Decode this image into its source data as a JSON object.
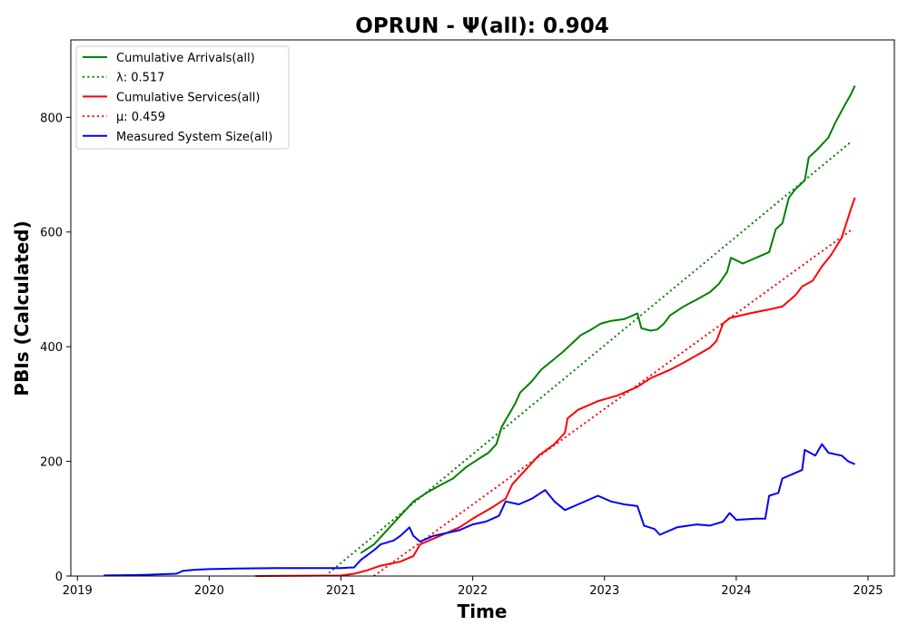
{
  "chart_data": {
    "type": "line",
    "title": "OPRUN -  Ψ(all): 0.904",
    "xlabel": "Time",
    "ylabel": "PBIs (Calculated)",
    "xlim": [
      2018.95,
      2025.2
    ],
    "ylim": [
      0,
      935
    ],
    "x_ticks": [
      "2019",
      "2020",
      "2021",
      "2022",
      "2023",
      "2024",
      "2025"
    ],
    "y_ticks": [
      "0",
      "200",
      "400",
      "600",
      "800"
    ],
    "grid": false,
    "legend_position": "upper left",
    "series": [
      {
        "name": "Cumulative Arrivals(all)",
        "color": "#008000",
        "style": "solid",
        "points": [
          [
            2021.15,
            40
          ],
          [
            2021.25,
            55
          ],
          [
            2021.35,
            80
          ],
          [
            2021.45,
            105
          ],
          [
            2021.55,
            130
          ],
          [
            2021.65,
            145
          ],
          [
            2021.75,
            158
          ],
          [
            2021.85,
            170
          ],
          [
            2021.95,
            190
          ],
          [
            2022.05,
            205
          ],
          [
            2022.12,
            215
          ],
          [
            2022.18,
            230
          ],
          [
            2022.22,
            260
          ],
          [
            2022.27,
            280
          ],
          [
            2022.32,
            300
          ],
          [
            2022.36,
            320
          ],
          [
            2022.45,
            340
          ],
          [
            2022.52,
            360
          ],
          [
            2022.6,
            375
          ],
          [
            2022.68,
            390
          ],
          [
            2022.75,
            405
          ],
          [
            2022.82,
            420
          ],
          [
            2022.9,
            430
          ],
          [
            2022.97,
            440
          ],
          [
            2023.05,
            445
          ],
          [
            2023.15,
            448
          ],
          [
            2023.25,
            458
          ],
          [
            2023.28,
            432
          ],
          [
            2023.35,
            428
          ],
          [
            2023.4,
            430
          ],
          [
            2023.45,
            440
          ],
          [
            2023.5,
            455
          ],
          [
            2023.6,
            470
          ],
          [
            2023.7,
            482
          ],
          [
            2023.8,
            495
          ],
          [
            2023.87,
            510
          ],
          [
            2023.93,
            530
          ],
          [
            2023.96,
            555
          ],
          [
            2024.05,
            545
          ],
          [
            2024.15,
            555
          ],
          [
            2024.25,
            565
          ],
          [
            2024.3,
            605
          ],
          [
            2024.35,
            615
          ],
          [
            2024.4,
            660
          ],
          [
            2024.45,
            675
          ],
          [
            2024.52,
            690
          ],
          [
            2024.55,
            730
          ],
          [
            2024.62,
            745
          ],
          [
            2024.7,
            765
          ],
          [
            2024.75,
            790
          ],
          [
            2024.82,
            820
          ],
          [
            2024.87,
            840
          ],
          [
            2024.9,
            855
          ]
        ]
      },
      {
        "name": "λ: 0.517",
        "color": "#008000",
        "style": "dotted",
        "points": [
          [
            2020.88,
            0
          ],
          [
            2024.87,
            757
          ]
        ]
      },
      {
        "name": "Cumulative Services(all)",
        "color": "#ff0000",
        "style": "solid",
        "points": [
          [
            2020.35,
            0
          ],
          [
            2021.0,
            1
          ],
          [
            2021.1,
            4
          ],
          [
            2021.2,
            10
          ],
          [
            2021.3,
            18
          ],
          [
            2021.45,
            25
          ],
          [
            2021.55,
            35
          ],
          [
            2021.6,
            55
          ],
          [
            2021.75,
            70
          ],
          [
            2021.9,
            85
          ],
          [
            2022.0,
            100
          ],
          [
            2022.15,
            120
          ],
          [
            2022.25,
            135
          ],
          [
            2022.3,
            160
          ],
          [
            2022.4,
            185
          ],
          [
            2022.5,
            210
          ],
          [
            2022.62,
            230
          ],
          [
            2022.7,
            250
          ],
          [
            2022.72,
            275
          ],
          [
            2022.8,
            290
          ],
          [
            2022.9,
            300
          ],
          [
            2022.95,
            305
          ],
          [
            2023.1,
            315
          ],
          [
            2023.25,
            330
          ],
          [
            2023.35,
            345
          ],
          [
            2023.5,
            360
          ],
          [
            2023.6,
            372
          ],
          [
            2023.7,
            385
          ],
          [
            2023.8,
            398
          ],
          [
            2023.85,
            410
          ],
          [
            2023.9,
            440
          ],
          [
            2023.95,
            450
          ],
          [
            2024.1,
            458
          ],
          [
            2024.25,
            465
          ],
          [
            2024.35,
            470
          ],
          [
            2024.45,
            490
          ],
          [
            2024.5,
            505
          ],
          [
            2024.58,
            515
          ],
          [
            2024.65,
            540
          ],
          [
            2024.72,
            560
          ],
          [
            2024.8,
            590
          ],
          [
            2024.87,
            640
          ],
          [
            2024.9,
            660
          ]
        ]
      },
      {
        "name": "μ: 0.459",
        "color": "#ff0000",
        "style": "dotted",
        "points": [
          [
            2021.25,
            0
          ],
          [
            2024.87,
            603
          ]
        ]
      },
      {
        "name": "Measured System Size(all)",
        "color": "#0000ff",
        "style": "solid",
        "points": [
          [
            2019.2,
            1
          ],
          [
            2019.5,
            2
          ],
          [
            2019.75,
            4
          ],
          [
            2019.8,
            9
          ],
          [
            2019.9,
            11
          ],
          [
            2020.0,
            12
          ],
          [
            2020.2,
            13
          ],
          [
            2020.5,
            14
          ],
          [
            2021.0,
            14
          ],
          [
            2021.1,
            15
          ],
          [
            2021.15,
            28
          ],
          [
            2021.25,
            45
          ],
          [
            2021.3,
            55
          ],
          [
            2021.4,
            62
          ],
          [
            2021.45,
            70
          ],
          [
            2021.52,
            85
          ],
          [
            2021.55,
            70
          ],
          [
            2021.6,
            60
          ],
          [
            2021.7,
            70
          ],
          [
            2021.8,
            75
          ],
          [
            2021.9,
            80
          ],
          [
            2022.0,
            90
          ],
          [
            2022.1,
            95
          ],
          [
            2022.15,
            100
          ],
          [
            2022.2,
            105
          ],
          [
            2022.25,
            130
          ],
          [
            2022.35,
            125
          ],
          [
            2022.45,
            135
          ],
          [
            2022.55,
            150
          ],
          [
            2022.62,
            130
          ],
          [
            2022.7,
            115
          ],
          [
            2022.8,
            125
          ],
          [
            2022.95,
            140
          ],
          [
            2023.05,
            130
          ],
          [
            2023.15,
            125
          ],
          [
            2023.25,
            122
          ],
          [
            2023.3,
            88
          ],
          [
            2023.38,
            82
          ],
          [
            2023.42,
            72
          ],
          [
            2023.55,
            85
          ],
          [
            2023.7,
            90
          ],
          [
            2023.8,
            88
          ],
          [
            2023.9,
            95
          ],
          [
            2023.95,
            110
          ],
          [
            2024.0,
            98
          ],
          [
            2024.15,
            100
          ],
          [
            2024.22,
            100
          ],
          [
            2024.25,
            140
          ],
          [
            2024.32,
            145
          ],
          [
            2024.35,
            170
          ],
          [
            2024.45,
            180
          ],
          [
            2024.5,
            185
          ],
          [
            2024.52,
            220
          ],
          [
            2024.6,
            210
          ],
          [
            2024.65,
            230
          ],
          [
            2024.7,
            215
          ],
          [
            2024.8,
            210
          ],
          [
            2024.85,
            200
          ],
          [
            2024.9,
            195
          ]
        ]
      }
    ]
  }
}
